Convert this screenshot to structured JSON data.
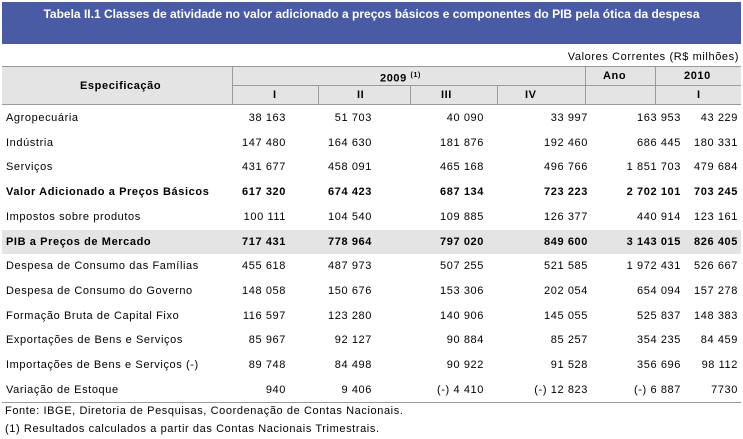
{
  "header": {
    "title": "Tabela II.1 Classes de atividade no valor adicionado a preços básicos e componentes do PIB pela ótica da despesa",
    "units": "Valores Correntes (R$ milhões)"
  },
  "table": {
    "columns": {
      "spec": "Especificação",
      "year_2009": "2009",
      "year_2009_note": "(1)",
      "ano": "Ano",
      "year_2010": "2010",
      "quarters_2009": [
        "I",
        "II",
        "III",
        "IV"
      ],
      "quarter_2010": "I"
    },
    "rows": [
      {
        "label": "Agropecuária",
        "values": [
          "38 163",
          "51 703",
          "40 090",
          "33 997",
          "163 953",
          "43 229"
        ]
      },
      {
        "label": "Indústria",
        "values": [
          "147 480",
          "164 630",
          "181 876",
          "192 460",
          "686 445",
          "180 331"
        ]
      },
      {
        "label": "Serviços",
        "values": [
          "431 677",
          "458 091",
          "465 168",
          "496 766",
          "1 851 703",
          "479 684"
        ]
      },
      {
        "label": "Valor Adicionado a Preços Básicos",
        "bold": true,
        "values": [
          "617 320",
          "674 423",
          "687 134",
          "723 223",
          "2 702 101",
          "703 245"
        ]
      },
      {
        "label": "Impostos sobre produtos",
        "values": [
          "100 111",
          "104 540",
          "109 885",
          "126 377",
          "440 914",
          "123 161"
        ]
      },
      {
        "label": "PIB a Preços de Mercado",
        "bold": true,
        "highlight": true,
        "values": [
          "717 431",
          "778 964",
          "797 020",
          "849 600",
          "3 143 015",
          "826 405"
        ]
      },
      {
        "label": "Despesa de Consumo das Famílias",
        "values": [
          "455 618",
          "487 973",
          "507 255",
          "521 585",
          "1 972 431",
          "526 667"
        ]
      },
      {
        "label": "Despesa de Consumo do Governo",
        "values": [
          "148 058",
          "150 676",
          "153 306",
          "202 054",
          "654 094",
          "157 278"
        ]
      },
      {
        "label": "Formação Bruta de Capital Fixo",
        "values": [
          "116 597",
          "123 280",
          "140 906",
          "145 055",
          "525 837",
          "148 383"
        ]
      },
      {
        "label": "Exportações de Bens e Serviços",
        "values": [
          "85 967",
          "92 127",
          "90 884",
          "85 257",
          "354 235",
          "84 459"
        ]
      },
      {
        "label": "Importações de Bens e Serviços (-)",
        "values": [
          "89 748",
          "84 498",
          "90 922",
          "91 528",
          "356 696",
          "98 112"
        ]
      },
      {
        "label": "Variação de Estoque",
        "values": [
          "940",
          "9 406",
          "(-) 4 410",
          "(-) 12 823",
          "(-) 6 887",
          "7730"
        ]
      }
    ]
  },
  "footer": {
    "source": "Fonte: IBGE, Diretoria de Pesquisas, Coordenação de Contas Nacionais.",
    "note": "(1) Resultados calculados a partir das Contas Nacionais Trimestrais."
  }
}
